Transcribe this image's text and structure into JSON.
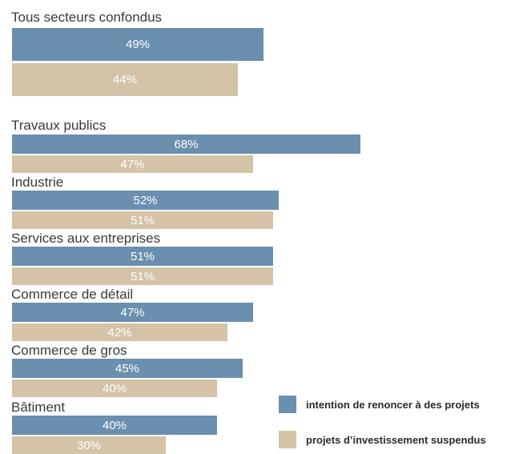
{
  "chart_data": {
    "type": "bar",
    "orientation": "horizontal",
    "categories": [
      "Tous secteurs confondus",
      "Travaux publics",
      "Industrie",
      "Services aux entreprises",
      "Commerce de détail",
      "Commerce de gros",
      "Bâtiment"
    ],
    "series": [
      {
        "name": "intention de renoncer à des projets",
        "color": "#6b8fae",
        "values": [
          49,
          68,
          52,
          51,
          47,
          45,
          40
        ],
        "labels": [
          "49%",
          "68%",
          "52%",
          "51%",
          "47%",
          "45%",
          "40%"
        ]
      },
      {
        "name": "projets d’investissement suspendus",
        "color": "#d4c3a6",
        "values": [
          44,
          47,
          51,
          51,
          42,
          40,
          30
        ],
        "labels": [
          "44%",
          "47%",
          "51%",
          "51%",
          "42%",
          "40%",
          "30%"
        ]
      }
    ],
    "legend_position": "bottom-right",
    "grid": false
  }
}
